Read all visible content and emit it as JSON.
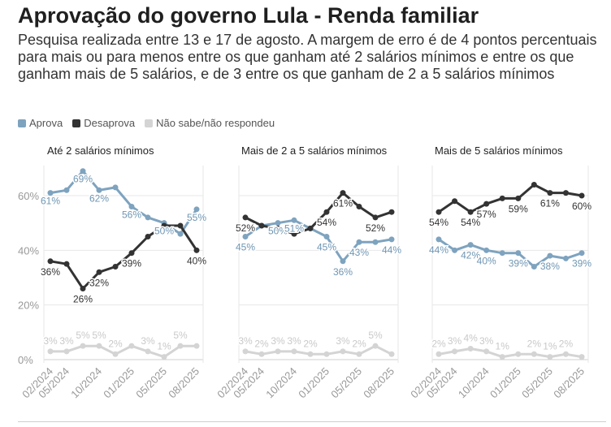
{
  "header": {
    "title": "Aprovação do governo Lula - Renda familiar",
    "subtitle": "Pesquisa realizada entre 13 e 17 de agosto. A margem de erro é de 4 pontos percentuais para mais ou para menos entre os que ganham até 2 salários mínimos e entre os que ganham mais de 5 salários, e de 3 entre os que ganham de 2 a 5 salários mínimos"
  },
  "legend": [
    {
      "label": "Aprova",
      "color": "#7ea3bf"
    },
    {
      "label": "Desaprova",
      "color": "#333333"
    },
    {
      "label": "Não sabe/não respondeu",
      "color": "#d4d4d4"
    }
  ],
  "chart_data": {
    "type": "line",
    "ylim": [
      0,
      70
    ],
    "yticks": [
      0,
      20,
      40,
      60
    ],
    "ytick_labels": [
      "0%",
      "20%",
      "40%",
      "60%"
    ],
    "grid": true,
    "legend_position": "top-left",
    "xtick_labels": [
      "02/2024",
      "05/2024",
      "10/2024",
      "01/2025",
      "05/2025",
      "08/2025"
    ],
    "xtick_index": [
      0,
      1,
      3,
      5,
      7,
      9
    ],
    "x": [
      "02/2024",
      "05/2024",
      "07/2024",
      "10/2024",
      "12/2024",
      "01/2025",
      "04/2025",
      "05/2025",
      "06/2025",
      "08/2025"
    ],
    "panels": [
      {
        "title": "Até 2 salários mínimos",
        "series": [
          {
            "name": "Aprova",
            "values": [
              61,
              62,
              69,
              62,
              63,
              56,
              52,
              50,
              46,
              55
            ]
          },
          {
            "name": "Desaprova",
            "values": [
              36,
              35,
              26,
              32,
              34,
              39,
              45,
              49,
              49,
              40
            ]
          },
          {
            "name": "Não sabe/não respondeu",
            "values": [
              3,
              3,
              5,
              5,
              2,
              5,
              3,
              1,
              5,
              5
            ]
          }
        ],
        "labels": {
          "Aprova": [
            [
              "61%",
              0
            ],
            [
              "69%",
              2
            ],
            [
              "62%",
              3
            ],
            [
              "56%",
              5
            ],
            [
              "50%",
              7
            ],
            [
              "55%",
              9
            ]
          ],
          "Desaprova": [
            [
              "36%",
              0
            ],
            [
              "26%",
              2
            ],
            [
              "32%",
              3
            ],
            [
              "39%",
              5
            ],
            [
              "40%",
              9
            ]
          ],
          "Não sabe/não respondeu": [
            [
              "3%",
              0
            ],
            [
              "3%",
              1
            ],
            [
              "5%",
              2
            ],
            [
              "5%",
              3
            ],
            [
              "2%",
              4
            ],
            [
              "3%",
              6
            ],
            [
              "1%",
              7
            ],
            [
              "5%",
              8
            ]
          ]
        }
      },
      {
        "title": "Mais de 2 a 5 salários mínimos",
        "series": [
          {
            "name": "Aprova",
            "values": [
              45,
              49,
              50,
              51,
              48,
              45,
              36,
              43,
              43,
              44
            ]
          },
          {
            "name": "Desaprova",
            "values": [
              52,
              49,
              48,
              46,
              48,
              54,
              61,
              56,
              52,
              54
            ]
          },
          {
            "name": "Não sabe/não respondeu",
            "values": [
              3,
              2,
              3,
              3,
              2,
              2,
              3,
              2,
              5,
              2
            ]
          }
        ],
        "labels": {
          "Aprova": [
            [
              "45%",
              0
            ],
            [
              "50%",
              2
            ],
            [
              "51%",
              3
            ],
            [
              "45%",
              5
            ],
            [
              "36%",
              6
            ],
            [
              "43%",
              7
            ],
            [
              "44%",
              9
            ]
          ],
          "Desaprova": [
            [
              "52%",
              0
            ],
            [
              "54%",
              5
            ],
            [
              "61%",
              6
            ],
            [
              "52%",
              8
            ]
          ],
          "Não sabe/não respondeu": [
            [
              "3%",
              0
            ],
            [
              "2%",
              1
            ],
            [
              "3%",
              2
            ],
            [
              "3%",
              3
            ],
            [
              "2%",
              4
            ],
            [
              "3%",
              6
            ],
            [
              "2%",
              7
            ],
            [
              "5%",
              8
            ]
          ]
        }
      },
      {
        "title": "Mais de 5 salários mínimos",
        "series": [
          {
            "name": "Aprova",
            "values": [
              44,
              40,
              42,
              40,
              39,
              39,
              34,
              38,
              37,
              39
            ]
          },
          {
            "name": "Desaprova",
            "values": [
              54,
              58,
              54,
              57,
              59,
              59,
              64,
              61,
              61,
              60
            ]
          },
          {
            "name": "Não sabe/não respondeu",
            "values": [
              2,
              3,
              4,
              3,
              1,
              2,
              2,
              1,
              2,
              1
            ]
          }
        ],
        "labels": {
          "Aprova": [
            [
              "44%",
              0
            ],
            [
              "42%",
              2
            ],
            [
              "40%",
              3
            ],
            [
              "39%",
              5
            ],
            [
              "38%",
              7
            ],
            [
              "39%",
              9
            ]
          ],
          "Desaprova": [
            [
              "54%",
              0
            ],
            [
              "54%",
              2
            ],
            [
              "57%",
              3
            ],
            [
              "59%",
              5
            ],
            [
              "61%",
              7
            ],
            [
              "60%",
              9
            ]
          ],
          "Não sabe/não respondeu": [
            [
              "2%",
              0
            ],
            [
              "3%",
              1
            ],
            [
              "4%",
              2
            ],
            [
              "3%",
              3
            ],
            [
              "1%",
              4
            ],
            [
              "2%",
              6
            ],
            [
              "1%",
              7
            ],
            [
              "2%",
              8
            ]
          ]
        }
      }
    ]
  }
}
